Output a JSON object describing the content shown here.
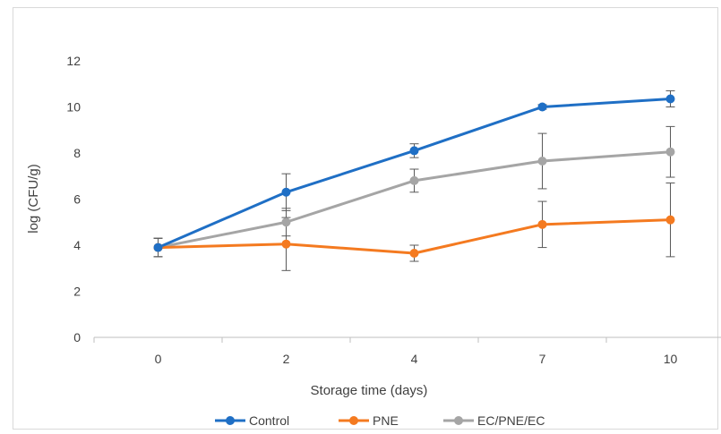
{
  "chart_data": {
    "type": "line",
    "title": "",
    "xlabel": "Storage time (days)",
    "ylabel": "log (CFU/g)",
    "categories": [
      "0",
      "2",
      "4",
      "7",
      "10"
    ],
    "ylim": [
      0,
      12
    ],
    "yticks": [
      0,
      2,
      4,
      6,
      8,
      10,
      12
    ],
    "grid": false,
    "legend_position": "bottom",
    "series": [
      {
        "name": "Control",
        "color": "#1f6fc5",
        "values": [
          3.9,
          6.3,
          8.1,
          10.0,
          10.35
        ],
        "errors": [
          0.4,
          0.8,
          0.3,
          0.1,
          0.35
        ]
      },
      {
        "name": "PNE",
        "color": "#f47a20",
        "values": [
          3.9,
          4.05,
          3.65,
          4.9,
          5.1
        ],
        "errors": [
          0.4,
          1.15,
          0.35,
          1.0,
          1.6
        ]
      },
      {
        "name": "EC/PNE/EC",
        "color": "#a5a5a5",
        "values": [
          3.9,
          5.0,
          6.8,
          7.65,
          8.05
        ],
        "errors": [
          0.4,
          0.6,
          0.5,
          1.2,
          1.1
        ]
      }
    ]
  }
}
